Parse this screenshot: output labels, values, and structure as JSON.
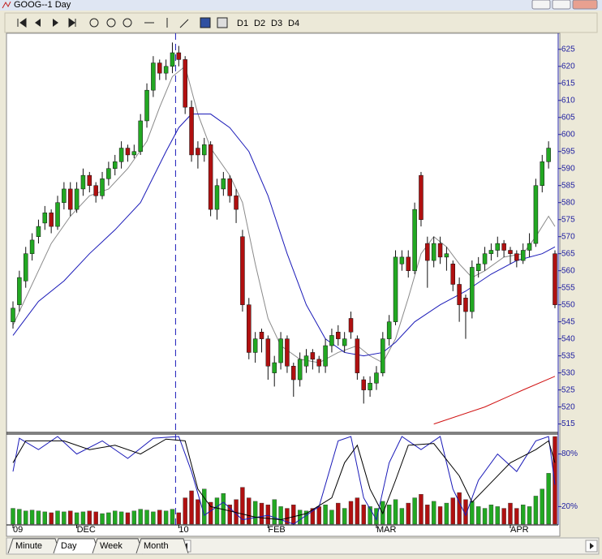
{
  "window": {
    "title": "GOOG--1 Day"
  },
  "toolbar": {
    "labels": [
      "D1",
      "D2",
      "D3",
      "D4"
    ]
  },
  "tabs": [
    "Minute",
    "Day",
    "Week",
    "Month"
  ],
  "chart_data": [
    {
      "type": "candlestick",
      "up_color": "#22a822",
      "down_color": "#b01010",
      "ylim": [
        513,
        629
      ],
      "yticks": [
        515,
        520,
        525,
        530,
        535,
        540,
        545,
        550,
        555,
        560,
        565,
        570,
        575,
        580,
        585,
        590,
        595,
        600,
        605,
        610,
        615,
        620,
        625
      ],
      "xticks": [
        {
          "value": 0,
          "label": "09"
        },
        {
          "value": 10,
          "label": "DEC"
        },
        {
          "value": 26,
          "label": "10"
        },
        {
          "value": 40,
          "label": "FEB"
        },
        {
          "value": 57,
          "label": "MAR"
        },
        {
          "value": 78,
          "label": "APR"
        }
      ],
      "ohlc": [
        [
          545,
          551,
          543,
          549
        ],
        [
          550,
          560,
          548,
          558
        ],
        [
          557,
          567,
          555,
          565
        ],
        [
          565,
          571,
          563,
          569
        ],
        [
          570,
          575,
          568,
          573
        ],
        [
          574,
          579,
          572,
          577
        ],
        [
          577,
          578,
          571,
          573
        ],
        [
          573,
          582,
          572,
          580
        ],
        [
          580,
          586,
          578,
          584
        ],
        [
          584,
          586,
          576,
          578
        ],
        [
          578,
          586,
          577,
          584
        ],
        [
          584,
          590,
          582,
          588
        ],
        [
          588,
          589,
          583,
          585
        ],
        [
          585,
          586,
          580,
          582
        ],
        [
          582,
          589,
          581,
          587
        ],
        [
          587,
          592,
          585,
          590
        ],
        [
          590,
          594,
          588,
          592
        ],
        [
          592,
          598,
          590,
          596
        ],
        [
          596,
          597,
          592,
          594
        ],
        [
          594,
          597,
          593,
          595
        ],
        [
          595,
          606,
          594,
          604
        ],
        [
          604,
          615,
          602,
          613
        ],
        [
          613,
          623,
          611,
          621
        ],
        [
          621,
          622,
          616,
          618
        ],
        [
          618,
          622,
          616,
          620
        ],
        [
          620,
          627,
          618,
          624
        ],
        [
          624,
          626,
          620,
          622
        ],
        [
          622,
          623,
          606,
          608
        ],
        [
          608,
          610,
          592,
          594
        ],
        [
          596,
          598,
          590,
          594
        ],
        [
          594,
          599,
          592,
          597
        ],
        [
          597,
          598,
          576,
          578
        ],
        [
          578,
          587,
          575,
          585
        ],
        [
          584,
          589,
          582,
          587
        ],
        [
          587,
          588,
          580,
          582
        ],
        [
          582,
          584,
          574,
          578
        ],
        [
          570,
          572,
          548,
          550
        ],
        [
          550,
          552,
          534,
          536
        ],
        [
          536,
          542,
          533,
          540
        ],
        [
          542,
          543,
          536,
          540
        ],
        [
          540,
          541,
          528,
          532
        ],
        [
          530,
          535,
          526,
          533
        ],
        [
          533,
          542,
          531,
          540
        ],
        [
          540,
          541,
          530,
          532
        ],
        [
          532,
          533,
          523,
          528
        ],
        [
          528,
          536,
          526,
          534
        ],
        [
          532,
          537,
          530,
          535
        ],
        [
          536,
          537,
          531,
          534
        ],
        [
          534,
          535,
          530,
          532
        ],
        [
          532,
          540,
          530,
          538
        ],
        [
          538,
          543,
          536,
          541
        ],
        [
          542,
          544,
          538,
          540
        ],
        [
          538,
          542,
          536,
          540
        ],
        [
          546,
          548,
          540,
          542
        ],
        [
          540,
          541,
          528,
          530
        ],
        [
          528,
          529,
          521,
          525
        ],
        [
          525,
          529,
          523,
          527
        ],
        [
          527,
          532,
          525,
          530
        ],
        [
          530,
          542,
          529,
          540
        ],
        [
          540,
          547,
          538,
          545
        ],
        [
          545,
          566,
          544,
          564
        ],
        [
          562,
          566,
          560,
          564
        ],
        [
          564,
          566,
          558,
          560
        ],
        [
          560,
          580,
          559,
          578
        ],
        [
          588,
          589,
          573,
          575
        ],
        [
          568,
          570,
          555,
          563
        ],
        [
          563,
          570,
          561,
          568
        ],
        [
          568,
          570,
          562,
          564
        ],
        [
          564,
          567,
          560,
          565
        ],
        [
          562,
          563,
          554,
          556
        ],
        [
          556,
          558,
          545,
          550
        ],
        [
          552,
          553,
          540,
          548
        ],
        [
          548,
          563,
          546,
          561
        ],
        [
          560,
          564,
          558,
          562
        ],
        [
          562,
          567,
          560,
          565
        ],
        [
          565,
          568,
          563,
          566
        ],
        [
          566,
          570,
          564,
          568
        ],
        [
          568,
          569,
          564,
          566
        ],
        [
          566,
          567,
          562,
          565
        ],
        [
          565,
          566,
          561,
          563
        ],
        [
          563,
          568,
          562,
          566
        ],
        [
          566,
          571,
          564,
          568
        ],
        [
          568,
          587,
          567,
          585
        ],
        [
          585,
          594,
          583,
          592
        ],
        [
          592,
          598,
          590,
          596
        ],
        [
          565,
          566,
          549,
          550
        ]
      ],
      "overlays": [
        {
          "color": "#8a8a8a",
          "x": [
            0,
            3,
            6,
            9,
            12,
            15,
            18,
            21,
            23,
            25,
            27,
            29,
            31,
            34,
            36,
            38,
            40,
            42,
            45,
            48,
            51,
            54,
            56,
            58,
            60,
            62,
            64,
            66,
            68,
            70,
            72,
            74,
            77,
            80,
            82,
            84,
            85
          ],
          "values": [
            544,
            556,
            568,
            576,
            582,
            584,
            590,
            598,
            608,
            617,
            620,
            606,
            596,
            588,
            580,
            562,
            546,
            538,
            534,
            533,
            536,
            538,
            535,
            533,
            540,
            552,
            565,
            570,
            567,
            562,
            558,
            560,
            564,
            565,
            570,
            576,
            573
          ]
        },
        {
          "color": "#1a1ab8",
          "x": [
            0,
            4,
            8,
            12,
            16,
            20,
            24,
            26,
            28,
            31,
            34,
            37,
            40,
            43,
            46,
            49,
            52,
            55,
            58,
            60,
            63,
            67,
            71,
            75,
            79,
            83,
            85
          ],
          "values": [
            541,
            551,
            557,
            565,
            572,
            580,
            595,
            602,
            606,
            606,
            602,
            595,
            582,
            565,
            550,
            540,
            536,
            535,
            536,
            539,
            545,
            550,
            554,
            559,
            563,
            565,
            567
          ]
        },
        {
          "color": "#d01010",
          "x": [
            66,
            74,
            80,
            85
          ],
          "values": [
            515,
            520,
            525,
            529
          ]
        }
      ]
    },
    {
      "type": "volume_stochastic",
      "ylim": [
        0,
        100
      ],
      "yticks": [
        {
          "value": 80,
          "label": "80%"
        },
        {
          "value": 20,
          "label": "20%"
        }
      ],
      "volume": [
        18,
        17,
        15,
        16,
        15,
        14,
        13,
        15,
        14,
        15,
        13,
        14,
        15,
        14,
        12,
        13,
        15,
        14,
        13,
        15,
        17,
        16,
        14,
        16,
        15,
        17,
        13,
        30,
        38,
        28,
        40,
        25,
        30,
        35,
        22,
        28,
        42,
        30,
        26,
        24,
        22,
        28,
        20,
        18,
        22,
        16,
        15,
        18,
        20,
        22,
        16,
        24,
        18,
        26,
        30,
        22,
        20,
        18,
        26,
        22,
        28,
        18,
        24,
        30,
        34,
        22,
        26,
        20,
        24,
        30,
        36,
        28,
        26,
        20,
        18,
        22,
        20,
        18,
        24,
        18,
        22,
        20,
        32,
        40,
        58,
        100
      ],
      "series": [
        {
          "color": "#1a1ab8",
          "x": [
            0,
            1,
            4,
            7,
            10,
            14,
            18,
            22,
            26,
            28,
            30,
            33,
            36,
            40,
            44,
            48,
            51,
            53,
            55,
            57,
            59,
            61,
            64,
            67,
            69,
            71,
            73,
            76,
            79,
            82,
            84,
            85
          ],
          "values": [
            60,
            98,
            85,
            100,
            80,
            95,
            75,
            98,
            100,
            60,
            10,
            25,
            5,
            10,
            0,
            20,
            95,
            100,
            30,
            5,
            70,
            100,
            85,
            100,
            40,
            10,
            50,
            80,
            60,
            95,
            100,
            45
          ]
        },
        {
          "color": "#000000",
          "x": [
            0,
            2,
            8,
            12,
            16,
            20,
            24,
            27,
            29,
            31,
            34,
            38,
            42,
            46,
            50,
            52,
            54,
            56,
            58,
            60,
            62,
            66,
            70,
            72,
            74,
            78,
            82,
            84,
            85
          ],
          "values": [
            70,
            95,
            95,
            85,
            90,
            80,
            97,
            95,
            40,
            20,
            15,
            8,
            5,
            12,
            30,
            70,
            90,
            40,
            12,
            50,
            90,
            92,
            55,
            25,
            40,
            70,
            85,
            95,
            70
          ]
        }
      ]
    }
  ]
}
